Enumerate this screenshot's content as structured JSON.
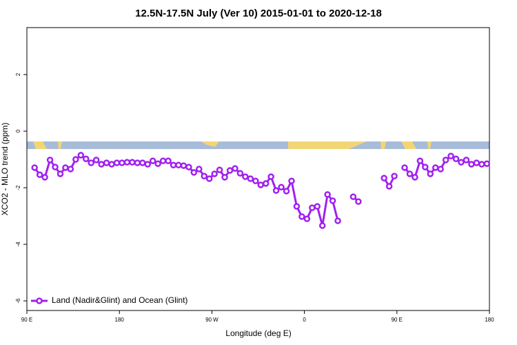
{
  "chart_data": {
    "type": "line",
    "title": "12.5N-17.5N July (Ver 10)   2015-01-01 to 2020-12-18",
    "x_label": "Longitude (deg E)",
    "y_label": "XCO2 - MLO trend (ppm)",
    "x": [
      97.5,
      102.5,
      107.5,
      112.5,
      117.5,
      122.5,
      127.5,
      132.5,
      137.5,
      142.5,
      147.5,
      152.5,
      157.5,
      162.5,
      167.5,
      172.5,
      177.5,
      182.5,
      187.5,
      192.5,
      197.5,
      202.5,
      207.5,
      212.5,
      217.5,
      222.5,
      227.5,
      232.5,
      237.5,
      242.5,
      247.5,
      252.5,
      257.5,
      262.5,
      267.5,
      272.5,
      277.5,
      282.5,
      287.5,
      292.5,
      297.5,
      302.5,
      307.5,
      312.5,
      317.5,
      322.5,
      327.5,
      332.5,
      337.5,
      342.5,
      347.5,
      352.5,
      357.5,
      362.5,
      367.5,
      372.5,
      377.5,
      382.5,
      387.5,
      392.5,
      397.5,
      402.5,
      407.5,
      412.5,
      417.5,
      422.5,
      427.5,
      432.5,
      437.5,
      442.5,
      447.5,
      452.5,
      457.5,
      462.5,
      467.5,
      472.5,
      477.5,
      482.5,
      487.5,
      492.5,
      497.5,
      502.5,
      507.5,
      512.5,
      517.5,
      522.5,
      527.5,
      532.5,
      537.5
    ],
    "series": [
      {
        "name": "Land (Nadir&Glint) and Ocean (Glint)",
        "color": "#a020f0",
        "values": [
          -1.29,
          -1.54,
          -1.63,
          -1.02,
          -1.27,
          -1.51,
          -1.29,
          -1.34,
          -1.0,
          -0.85,
          -0.98,
          -1.12,
          -1.02,
          -1.17,
          -1.12,
          -1.17,
          -1.12,
          -1.12,
          -1.1,
          -1.1,
          -1.12,
          -1.12,
          -1.17,
          -1.05,
          -1.15,
          -1.05,
          -1.05,
          -1.2,
          -1.2,
          -1.22,
          -1.27,
          -1.46,
          -1.34,
          -1.59,
          -1.68,
          -1.51,
          -1.37,
          -1.63,
          -1.39,
          -1.32,
          -1.49,
          -1.61,
          -1.68,
          -1.76,
          -1.9,
          -1.85,
          -1.61,
          -2.1,
          -1.98,
          -2.12,
          -1.76,
          -2.66,
          -3.02,
          -3.1,
          -2.71,
          -2.66,
          -3.34,
          -2.24,
          -2.46,
          -3.17,
          null,
          null,
          -2.32,
          -2.49,
          null,
          null,
          null,
          null,
          -1.66,
          -1.95,
          -1.59,
          null,
          -1.29,
          -1.51,
          -1.63,
          -1.05,
          -1.27,
          -1.51,
          -1.29,
          -1.34,
          -1.02,
          -0.88,
          -0.98,
          -1.1,
          -1.02,
          -1.17,
          -1.12,
          -1.17,
          -1.15
        ]
      }
    ],
    "xlim": [
      90,
      540
    ],
    "ylim": [
      -6.34,
      3.66
    ],
    "xticks": [
      {
        "value": 90,
        "label": "90 E"
      },
      180,
      {
        "value": 270,
        "label": "90 W"
      },
      {
        "value": 360,
        "label": "0"
      },
      {
        "value": 450,
        "label": "90 E"
      },
      {
        "value": 540,
        "label": "180"
      }
    ],
    "yticks": [
      2,
      0,
      -2,
      -4,
      -6
    ],
    "legend": "bottom-left"
  }
}
